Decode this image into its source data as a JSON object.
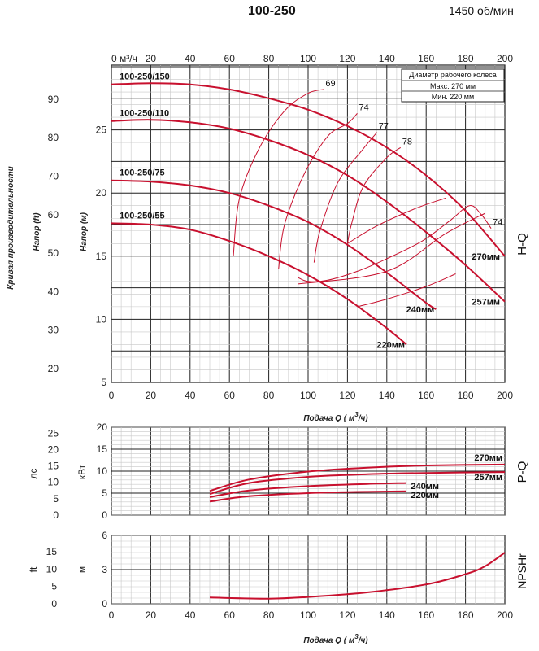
{
  "header": {
    "title": "100-250",
    "speed": "1450 об/мин"
  },
  "left_caption": "Кривая производительности",
  "x_axis": {
    "top_label": "0 м³/ч",
    "ticks": [
      "0",
      "20",
      "40",
      "60",
      "80",
      "100",
      "120",
      "140",
      "160",
      "180",
      "200"
    ],
    "label_prefix": "Подача Q (",
    "label_unit": "м",
    "label_sup": "3",
    "label_suffix": "/ч)",
    "range": [
      0,
      200
    ]
  },
  "impeller_box": {
    "header": "Диаметр рабочего колеса",
    "max": "Макс. 270  мм",
    "min": "Мин.  220  мм"
  },
  "chart_data": [
    {
      "type": "line",
      "panel": "H-Q",
      "panel_label": "H-Q",
      "ylabel_m": "Напор (м)",
      "ylabel_ft": "Напор (ft)",
      "ylim_m": [
        5,
        30
      ],
      "yticks_m": [
        "5",
        "10",
        "15",
        "20",
        "25"
      ],
      "yticks_ft": [
        "20",
        "30",
        "40",
        "50",
        "60",
        "70",
        "80",
        "90"
      ],
      "series": [
        {
          "name": "100-250/150",
          "end_label": "270мм",
          "x": [
            0,
            20,
            40,
            60,
            80,
            100,
            120,
            140,
            160,
            180,
            200
          ],
          "y": [
            28.6,
            28.7,
            28.6,
            28.2,
            27.5,
            26.6,
            25.3,
            23.6,
            21.4,
            18.6,
            15.0
          ]
        },
        {
          "name": "100-250/110",
          "end_label": "257мм",
          "x": [
            0,
            20,
            40,
            60,
            80,
            100,
            120,
            140,
            160,
            180,
            200
          ],
          "y": [
            25.7,
            25.8,
            25.6,
            25.1,
            24.2,
            23.0,
            21.4,
            19.3,
            16.9,
            14.3,
            11.4
          ]
        },
        {
          "name": "100-250/75",
          "end_label": "240мм",
          "x": [
            0,
            20,
            40,
            60,
            80,
            100,
            120,
            140,
            160,
            165
          ],
          "y": [
            21.0,
            20.9,
            20.6,
            20.0,
            19.0,
            17.7,
            15.9,
            13.7,
            11.3,
            10.8
          ]
        },
        {
          "name": "100-250/55",
          "end_label": "220мм",
          "x": [
            0,
            20,
            40,
            60,
            80,
            100,
            120,
            140,
            150
          ],
          "y": [
            17.6,
            17.5,
            17.1,
            16.2,
            15.0,
            13.5,
            11.6,
            9.3,
            8.0
          ]
        }
      ],
      "efficiency": [
        {
          "label": "69",
          "x": [
            62,
            65,
            75,
            88,
            100,
            108
          ],
          "y": [
            15.0,
            19.5,
            23.5,
            26.5,
            27.9,
            28.2
          ]
        },
        {
          "label": "74",
          "x": [
            85,
            88,
            98,
            110,
            120,
            125
          ],
          "y": [
            14.0,
            17.5,
            21.5,
            24.5,
            25.5,
            26.3
          ]
        },
        {
          "label": "77",
          "x": [
            103,
            106,
            115,
            128,
            135
          ],
          "y": [
            14.5,
            17.0,
            20.8,
            23.5,
            24.8
          ]
        },
        {
          "label": "78",
          "x": [
            120,
            122,
            128,
            140,
            147
          ],
          "y": [
            16.0,
            17.5,
            20.5,
            22.8,
            23.6
          ]
        },
        {
          "label": "74",
          "x": [
            95,
            100,
            110,
            125,
            140,
            158,
            172,
            182,
            188,
            193
          ],
          "y": [
            13.3,
            13.0,
            13.1,
            13.8,
            14.8,
            16.2,
            17.8,
            19.0,
            18.3,
            17.2
          ]
        }
      ],
      "top_iso": {
        "x": [
          95,
          140,
          170,
          190
        ],
        "y": [
          12.8,
          13.8,
          16.8,
          18.4
        ]
      },
      "inner_iso": {
        "x": [
          120,
          135,
          155,
          170
        ],
        "y": [
          16.0,
          17.4,
          18.8,
          19.6
        ]
      },
      "low_iso": {
        "x": [
          125,
          140,
          160,
          175
        ],
        "y": [
          11.0,
          11.6,
          12.6,
          13.6
        ]
      }
    },
    {
      "type": "line",
      "panel": "P-Q",
      "panel_label": "P-Q",
      "ylabel_kw": "кВт",
      "ylabel_hp": "лс",
      "ylim_kw": [
        0,
        20
      ],
      "yticks_kw": [
        "0",
        "5",
        "10",
        "15",
        "20"
      ],
      "yticks_hp": [
        "0",
        "5",
        "10",
        "15",
        "20",
        "25"
      ],
      "series": [
        {
          "name": "270мм",
          "x": [
            50,
            70,
            100,
            130,
            160,
            200
          ],
          "y": [
            5.5,
            8.1,
            9.9,
            10.8,
            11.3,
            11.5
          ]
        },
        {
          "name": "257мм",
          "x": [
            50,
            70,
            100,
            130,
            160,
            200
          ],
          "y": [
            4.8,
            7.3,
            8.7,
            9.3,
            9.6,
            9.8
          ]
        },
        {
          "name": "240мм",
          "x": [
            50,
            70,
            100,
            130,
            150
          ],
          "y": [
            4.1,
            5.6,
            6.6,
            7.1,
            7.3
          ]
        },
        {
          "name": "220мм",
          "x": [
            50,
            70,
            100,
            130,
            150
          ],
          "y": [
            3.1,
            4.3,
            5.0,
            5.3,
            5.4
          ]
        }
      ]
    },
    {
      "type": "line",
      "panel": "NPSHr",
      "panel_label": "NPSHr",
      "ylabel_m": "м",
      "ylabel_ft": "ft",
      "ylim_m": [
        0,
        6
      ],
      "yticks_m": [
        "0",
        "3",
        "6"
      ],
      "yticks_ft": [
        "0",
        "5",
        "10",
        "15"
      ],
      "series": [
        {
          "name": "NPSHr",
          "x": [
            50,
            80,
            100,
            130,
            160,
            180,
            190,
            200
          ],
          "y": [
            0.55,
            0.45,
            0.6,
            1.0,
            1.7,
            2.6,
            3.3,
            4.5
          ]
        }
      ]
    }
  ],
  "colors": {
    "curve": "#c8102e",
    "grid": "#222222",
    "minor_grid": "#c8c8c8"
  }
}
